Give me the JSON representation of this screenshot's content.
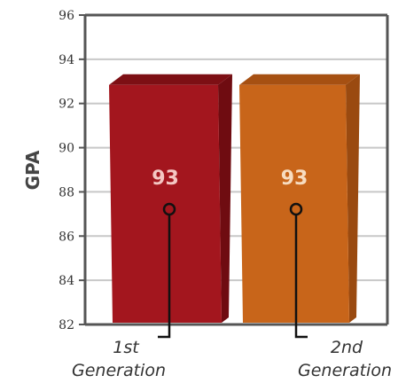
{
  "chart_data": {
    "type": "bar",
    "categories": [
      [
        "1st",
        "Generation"
      ],
      [
        "2nd",
        "Generation"
      ]
    ],
    "values": [
      93,
      93
    ],
    "data_labels": [
      "93",
      "93"
    ],
    "title": "",
    "xlabel": "",
    "ylabel": "GPA",
    "ylim": [
      82,
      96
    ],
    "yticks": [
      82,
      84,
      86,
      88,
      90,
      92,
      94,
      96
    ],
    "grid": true,
    "legend": "none",
    "colors": [
      "#a3161e",
      "#c8651a"
    ]
  }
}
